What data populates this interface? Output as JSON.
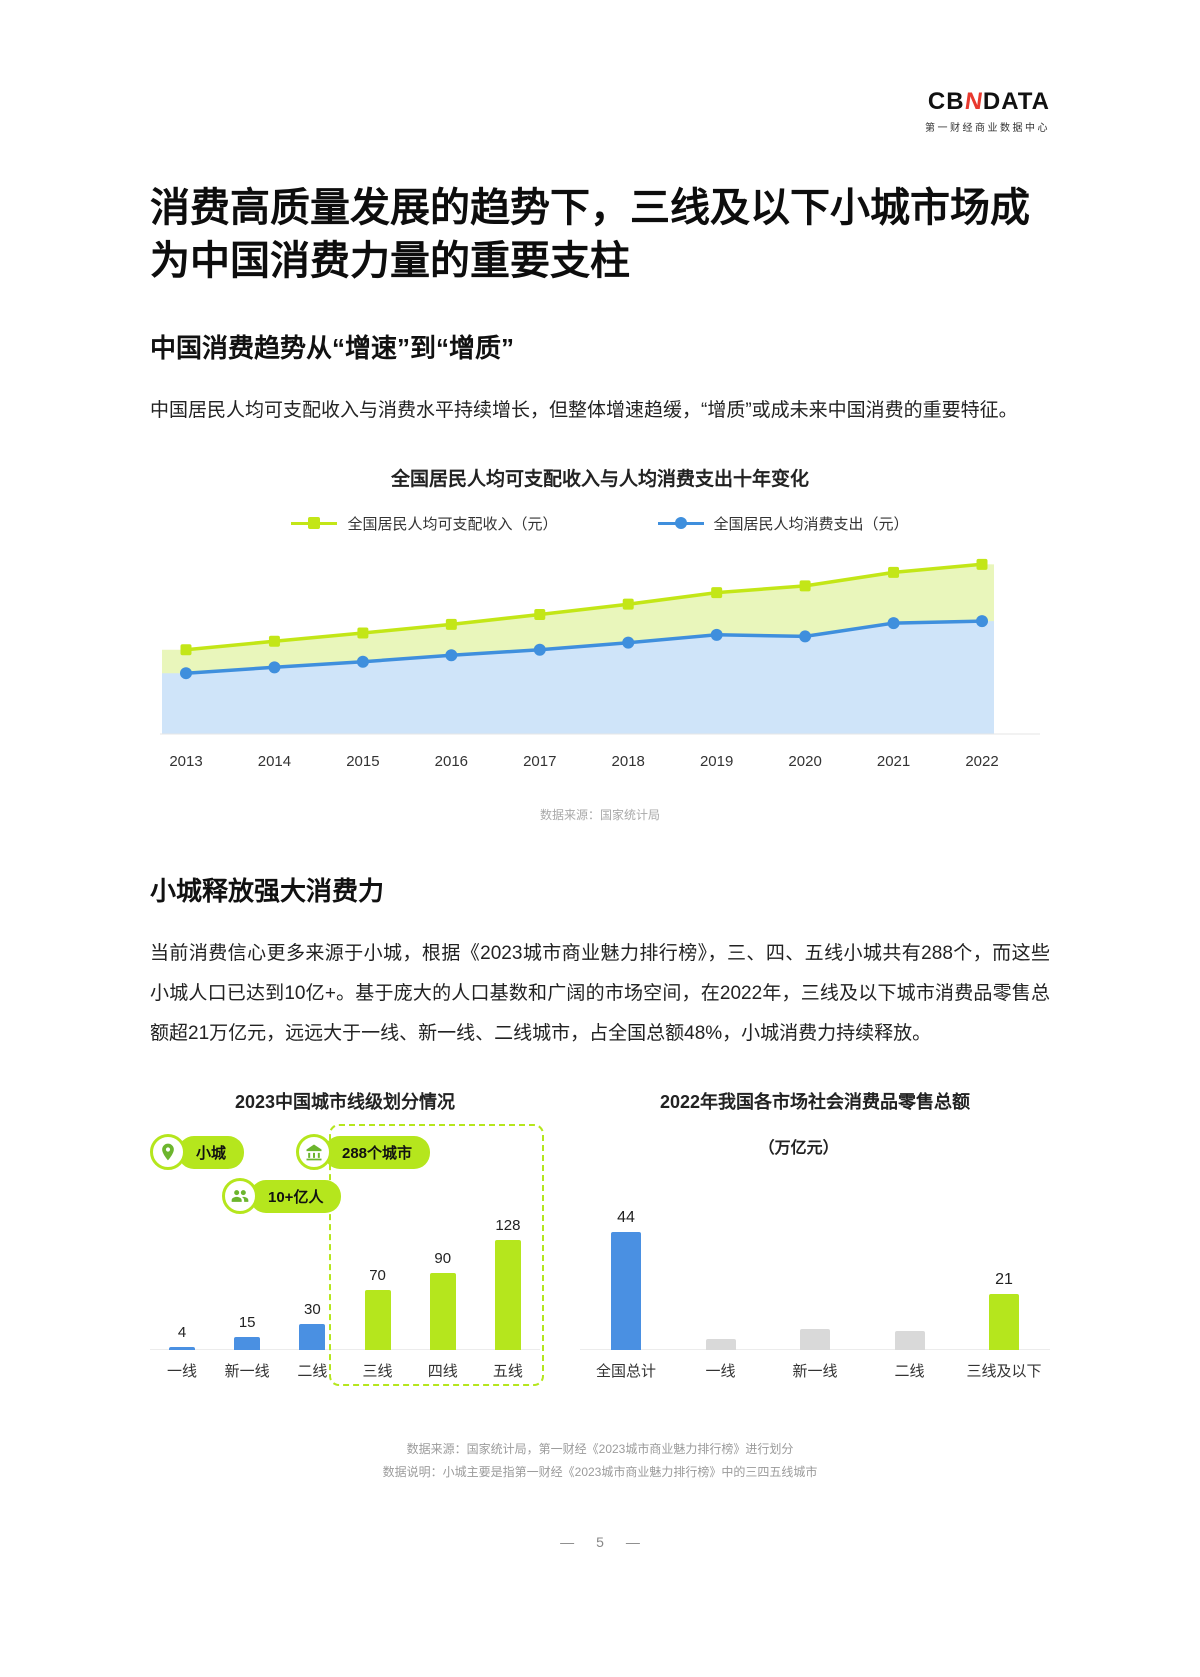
{
  "header": {
    "logo_cb": "CB",
    "logo_n": "N",
    "logo_data": "DATA",
    "logo_subtitle": "第一财经商业数据中心",
    "accent_color": "#e8392e"
  },
  "title": "消费高质量发展的趋势下，三线及以下小城市场成为中国消费力量的重要支柱",
  "section_trend": {
    "heading": "中国消费趋势从“增速”到“增质”",
    "body": "中国居民人均可支配收入与消费水平持续增长，但整体增速趋缓，“增质”或成未来中国消费的重要特征。"
  },
  "section_towns": {
    "heading": "小城释放强大消费力",
    "body": "当前消费信心更多来源于小城，根据《2023城市商业魅力排行榜》，三、四、五线小城共有288个，而这些小城人口已达到10亿+。基于庞大的人口基数和广阔的市场空间，在2022年，三线及以下城市消费品零售总额超21万亿元，远远大于一线、新一线、二线城市，占全国总额48%，小城消费力持续释放。"
  },
  "chart_data": [
    {
      "type": "area",
      "title": "全国居民人均可支配收入与人均消费支出十年变化",
      "categories": [
        "2013",
        "2014",
        "2015",
        "2016",
        "2017",
        "2018",
        "2019",
        "2020",
        "2021",
        "2022"
      ],
      "series": [
        {
          "name": "全国居民人均可支配收入（元）",
          "marker": "square",
          "color": "#c3e617",
          "area_color": "#e9f6bb",
          "values": [
            18311,
            20167,
            21966,
            23821,
            25974,
            28228,
            30733,
            32189,
            35128,
            36883
          ]
        },
        {
          "name": "全国居民人均消费支出（元）",
          "marker": "circle",
          "color": "#3f8fdd",
          "area_color": "#cfe4f9",
          "values": [
            13220,
            14491,
            15712,
            17111,
            18322,
            19853,
            21559,
            21210,
            24100,
            24538
          ]
        }
      ],
      "ylim": [
        0,
        40000
      ],
      "grid": false,
      "legend_position": "top",
      "source": "数据来源：国家统计局"
    },
    {
      "type": "bar",
      "title": "2023中国城市线级划分情况",
      "categories": [
        "一线",
        "新一线",
        "二线",
        "三线",
        "四线",
        "五线"
      ],
      "values": [
        4,
        15,
        30,
        70,
        90,
        128
      ],
      "labels": [
        "4",
        "15",
        "30",
        "70",
        "90",
        "128"
      ],
      "colors": [
        "#4a90e2",
        "#4a90e2",
        "#4a90e2",
        "#b5e61d",
        "#b5e61d",
        "#b5e61d"
      ],
      "highlight_group": [
        "三线",
        "四线",
        "五线"
      ],
      "badges": [
        {
          "icon": "location-pin-icon",
          "label": "小城"
        },
        {
          "icon": "bank-icon",
          "label": "288个城市"
        },
        {
          "icon": "people-icon",
          "label": "10+亿人"
        }
      ]
    },
    {
      "type": "bar",
      "title": "2022年我国各市场社会消费品零售总额",
      "unit_label": "（万亿元）",
      "categories": [
        "全国总计",
        "一线",
        "新一线",
        "二线",
        "三线及以下"
      ],
      "values": [
        44,
        4,
        8,
        7,
        21
      ],
      "labels": [
        "44",
        "",
        "",
        "",
        "21"
      ],
      "colors": [
        "#4a90e2",
        "#d9d9d9",
        "#d9d9d9",
        "#d9d9d9",
        "#b5e61d"
      ]
    }
  ],
  "footer": {
    "source_line1": "数据来源：国家统计局，第一财经《2023城市商业魅力排行榜》进行划分",
    "source_line2": "数据说明：小城主要是指第一财经《2023城市商业魅力排行榜》中的三四五线城市",
    "dash": "—",
    "page_number": "5"
  }
}
